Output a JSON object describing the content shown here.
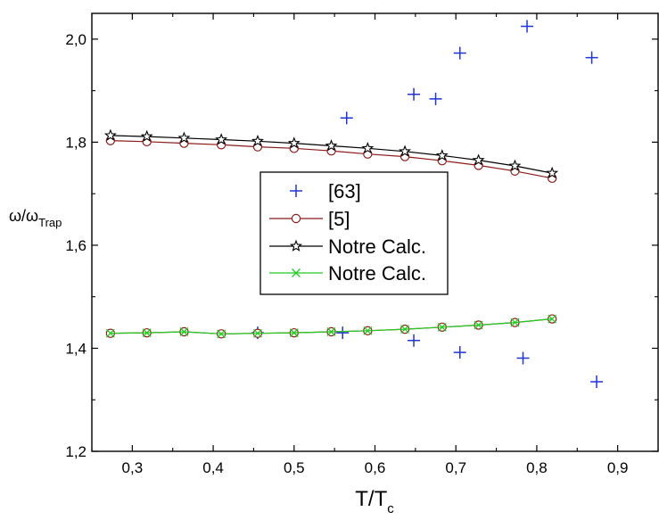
{
  "chart_data": {
    "type": "line",
    "xlabel": "T/T",
    "xlabel_sub": "c",
    "ylabel": "ω/ω",
    "ylabel_sub": "Trap",
    "xlim": [
      0.25,
      0.95
    ],
    "ylim": [
      1.2,
      2.05
    ],
    "x_ticks": [
      0.3,
      0.4,
      0.5,
      0.6,
      0.7,
      0.8,
      0.9
    ],
    "x_tick_labels": [
      "0,3",
      "0,4",
      "0,5",
      "0,6",
      "0,7",
      "0,8",
      "0,9"
    ],
    "y_ticks": [
      1.2,
      1.4,
      1.6,
      1.8,
      2.0
    ],
    "y_tick_labels": [
      "1,2",
      "1,4",
      "1,6",
      "1,8",
      "2,0"
    ],
    "grid": false,
    "legend_position": "center",
    "series": [
      {
        "name": "[63]",
        "marker": "plus",
        "line": false,
        "color": "#1f35d6",
        "points": [
          [
            0.565,
            1.847
          ],
          [
            0.648,
            1.893
          ],
          [
            0.675,
            1.884
          ],
          [
            0.705,
            1.973
          ],
          [
            0.788,
            2.025
          ],
          [
            0.868,
            1.964
          ],
          [
            0.455,
            1.43
          ],
          [
            0.56,
            1.43
          ],
          [
            0.648,
            1.415
          ],
          [
            0.705,
            1.392
          ],
          [
            0.783,
            1.381
          ],
          [
            0.874,
            1.335
          ]
        ]
      },
      {
        "name": "[5]",
        "marker": "circle",
        "line": true,
        "color": "#8b1a1a",
        "groups": [
          {
            "x": [
              0.273,
              0.318,
              0.364,
              0.41,
              0.455,
              0.5,
              0.546,
              0.591,
              0.637,
              0.683,
              0.728,
              0.773,
              0.819
            ],
            "y": [
              1.803,
              1.801,
              1.798,
              1.795,
              1.791,
              1.788,
              1.783,
              1.777,
              1.772,
              1.764,
              1.755,
              1.744,
              1.73
            ]
          },
          {
            "x": [
              0.273,
              0.318,
              0.364,
              0.41,
              0.455,
              0.5,
              0.546,
              0.591,
              0.637,
              0.683,
              0.728,
              0.773,
              0.819
            ],
            "y": [
              1.429,
              1.43,
              1.432,
              1.428,
              1.429,
              1.43,
              1.432,
              1.434,
              1.437,
              1.441,
              1.445,
              1.45,
              1.457
            ]
          }
        ]
      },
      {
        "name": "Notre Calc.",
        "marker": "star",
        "line": true,
        "color": "#000000",
        "groups": [
          {
            "x": [
              0.273,
              0.318,
              0.364,
              0.41,
              0.455,
              0.5,
              0.546,
              0.591,
              0.637,
              0.683,
              0.728,
              0.773,
              0.819
            ],
            "y": [
              1.813,
              1.811,
              1.808,
              1.805,
              1.802,
              1.798,
              1.793,
              1.788,
              1.782,
              1.774,
              1.765,
              1.754,
              1.74
            ]
          }
        ]
      },
      {
        "name": "Notre Calc.",
        "marker": "cross",
        "line": true,
        "color": "#22cc22",
        "groups": [
          {
            "x": [
              0.273,
              0.318,
              0.364,
              0.41,
              0.455,
              0.5,
              0.546,
              0.591,
              0.637,
              0.683,
              0.728,
              0.773,
              0.819
            ],
            "y": [
              1.429,
              1.43,
              1.432,
              1.428,
              1.429,
              1.43,
              1.432,
              1.434,
              1.437,
              1.441,
              1.445,
              1.45,
              1.457
            ]
          }
        ]
      }
    ]
  }
}
